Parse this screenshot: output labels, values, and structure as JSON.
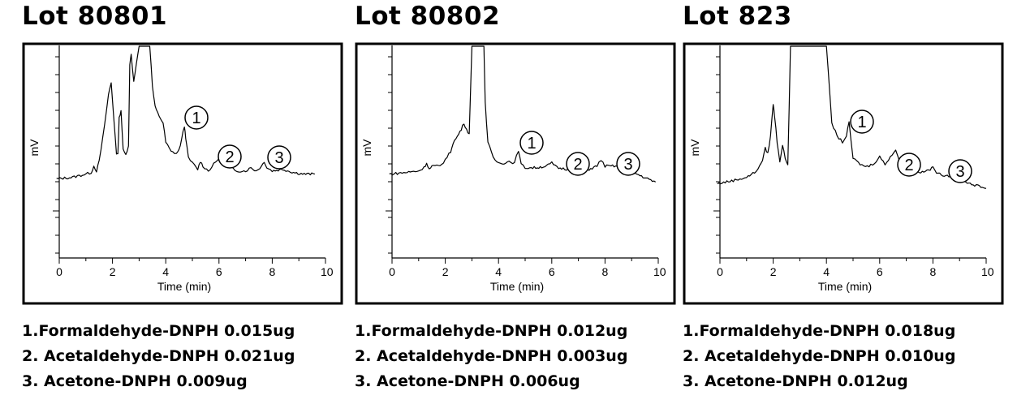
{
  "panels": [
    {
      "title": "Lot 80801",
      "legend": [
        "1.Formaldehyde-DNPH  0.015ug",
        "2. Acetaldehyde-DNPH 0.021ug",
        "3. Acetone-DNPH 0.009ug"
      ]
    },
    {
      "title": "Lot 80802",
      "legend": [
        "1.Formaldehyde-DNPH  0.012ug",
        "2. Acetaldehyde-DNPH 0.003ug",
        "3. Acetone-DNPH 0.006ug"
      ]
    },
    {
      "title": "Lot 823",
      "legend": [
        "1.Formaldehyde-DNPH  0.018ug",
        "2. Acetaldehyde-DNPH 0.010ug",
        "3. Acetone-DNPH 0.012ug"
      ]
    }
  ],
  "chart_data": [
    {
      "type": "line",
      "title": "Lot 80801",
      "xlabel": "Time (min)",
      "ylabel": "mV",
      "xlim": [
        0,
        10
      ],
      "ylim": [
        0,
        100
      ],
      "x_ticks": [
        "0",
        "2",
        "4",
        "6",
        "8",
        "10"
      ],
      "series": [
        {
          "x": [
            -0.1,
            0.5,
            1.0,
            1.2,
            1.3,
            1.4,
            1.5,
            1.7,
            1.85,
            1.95,
            2.05,
            2.15,
            2.2,
            2.25,
            2.32,
            2.4,
            2.5,
            2.6,
            2.65,
            2.7,
            2.8,
            2.9,
            3.0,
            3.2,
            3.4,
            3.5,
            3.6,
            3.7,
            3.8,
            3.9,
            4.0,
            4.2,
            4.4,
            4.5,
            4.6,
            4.7,
            4.75,
            4.85,
            5.0,
            5.2,
            5.3,
            5.4,
            5.6,
            5.8,
            6.0,
            6.2,
            6.4,
            6.6,
            6.8,
            7.0,
            7.2,
            7.4,
            7.6,
            7.7,
            7.8,
            8.0,
            8.4,
            8.8,
            9.2,
            9.6
          ],
          "y": [
            17,
            18,
            20,
            21,
            25,
            22,
            28,
            50,
            70,
            77,
            55,
            33,
            32,
            55,
            60,
            35,
            32,
            38,
            88,
            95,
            78,
            90,
            100,
            100,
            100,
            75,
            62,
            58,
            55,
            52,
            40,
            34,
            33,
            35,
            42,
            50,
            43,
            30,
            27,
            23,
            28,
            25,
            22,
            26,
            30,
            26,
            25,
            22,
            22,
            22,
            24,
            22,
            25,
            28,
            24,
            22,
            23,
            21,
            20,
            20
          ]
        }
      ],
      "annotations": [
        "1",
        "2",
        "3"
      ]
    },
    {
      "type": "line",
      "title": "Lot 80802",
      "xlabel": "Time (min)",
      "ylabel": "mV",
      "xlim": [
        0,
        10
      ],
      "ylim": [
        0,
        100
      ],
      "x_ticks": [
        "0",
        "2",
        "4",
        "6",
        "8",
        "10"
      ],
      "series": [
        {
          "x": [
            -0.1,
            0.5,
            1.0,
            1.2,
            1.3,
            1.4,
            1.5,
            1.8,
            2.0,
            2.2,
            2.3,
            2.4,
            2.5,
            2.6,
            2.7,
            2.8,
            2.9,
            3.0,
            3.2,
            3.4,
            3.45,
            3.5,
            3.6,
            3.8,
            4.0,
            4.2,
            4.4,
            4.6,
            4.75,
            4.85,
            5.0,
            5.4,
            5.8,
            6.0,
            6.2,
            6.6,
            7.0,
            7.4,
            7.7,
            7.85,
            8.0,
            8.4,
            8.8,
            9.2,
            9.6,
            9.9
          ],
          "y": [
            20,
            21,
            22,
            24,
            27,
            23,
            25,
            25,
            29,
            34,
            40,
            42,
            45,
            48,
            52,
            48,
            45,
            100,
            100,
            100,
            100,
            65,
            40,
            30,
            27,
            27,
            28,
            27,
            35,
            26,
            24,
            24,
            25,
            27,
            24,
            23,
            24,
            23,
            25,
            29,
            25,
            25,
            24,
            20,
            17,
            15
          ]
        }
      ],
      "annotations": [
        "1",
        "2",
        "3"
      ]
    },
    {
      "type": "line",
      "title": "Lot 823",
      "xlabel": "Time (min)",
      "ylabel": "mV",
      "xlim": [
        0,
        10
      ],
      "ylim": [
        0,
        100
      ],
      "x_ticks": [
        "0",
        "2",
        "4",
        "6",
        "8",
        "10"
      ],
      "series": [
        {
          "x": [
            -0.1,
            0.5,
            1.0,
            1.3,
            1.5,
            1.6,
            1.7,
            1.8,
            1.9,
            2.0,
            2.05,
            2.15,
            2.25,
            2.35,
            2.45,
            2.55,
            2.65,
            2.7,
            2.8,
            2.9,
            3.0,
            3.2,
            3.4,
            3.6,
            3.8,
            4.0,
            4.2,
            4.4,
            4.6,
            4.75,
            4.85,
            5.0,
            5.2,
            5.4,
            5.6,
            5.8,
            6.0,
            6.2,
            6.4,
            6.6,
            6.8,
            6.9,
            7.0,
            7.2,
            7.6,
            7.9,
            8.0,
            8.2,
            8.6,
            9.0,
            9.4,
            9.8,
            10.0
          ],
          "y": [
            14,
            16,
            18,
            21,
            25,
            29,
            36,
            33,
            44,
            64,
            57,
            40,
            28,
            38,
            30,
            26,
            100,
            100,
            100,
            100,
            100,
            100,
            100,
            100,
            100,
            100,
            52,
            44,
            40,
            44,
            52,
            30,
            27,
            25,
            25,
            27,
            31,
            26,
            31,
            35,
            26,
            29,
            25,
            23,
            21,
            23,
            24,
            20,
            19,
            17,
            14,
            12,
            11
          ]
        }
      ],
      "annotations": [
        "1",
        "2",
        "3"
      ]
    }
  ]
}
